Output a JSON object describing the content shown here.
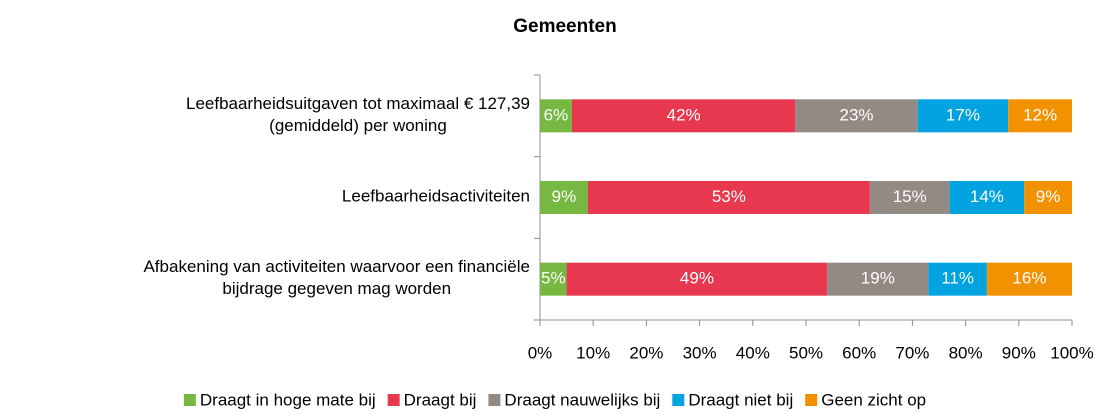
{
  "chart_data": {
    "type": "bar",
    "orientation": "horizontal",
    "stacked": true,
    "title": "Gemeenten",
    "categories": [
      "Leefbaarheidsuitgaven tot maximaal € 127,39\n(gemiddeld) per woning",
      "Leefbaarheidsactiviteiten",
      "Afbakening van activiteiten waarvoor een financiële\nbijdrage gegeven mag worden"
    ],
    "series": [
      {
        "name": "Draagt in hoge mate bij",
        "color": "#77b843",
        "values": [
          6,
          9,
          5
        ],
        "value_labels": [
          "6%",
          "9%",
          "5%"
        ]
      },
      {
        "name": "Draagt bij",
        "color": "#e8384f",
        "values": [
          42,
          53,
          49
        ],
        "value_labels": [
          "42%",
          "53%",
          "49%"
        ]
      },
      {
        "name": "Draagt nauwelijks bij",
        "color": "#948a84",
        "values": [
          23,
          15,
          19
        ],
        "value_labels": [
          "23%",
          "15%",
          "19%"
        ]
      },
      {
        "name": "Draagt niet bij",
        "color": "#00a2e0",
        "values": [
          17,
          14,
          11
        ],
        "value_labels": [
          "17%",
          "14%",
          "11%"
        ]
      },
      {
        "name": "Geen zicht op",
        "color": "#f39200",
        "values": [
          12,
          9,
          16
        ],
        "value_labels": [
          "12%",
          "9%",
          "16%"
        ]
      }
    ],
    "xlim": [
      0,
      100
    ],
    "xticks": [
      {
        "value": 0,
        "label": "0%"
      },
      {
        "value": 10,
        "label": "10%"
      },
      {
        "value": 20,
        "label": "20%"
      },
      {
        "value": 30,
        "label": "30%"
      },
      {
        "value": 40,
        "label": "40%"
      },
      {
        "value": 50,
        "label": "50%"
      },
      {
        "value": 60,
        "label": "60%"
      },
      {
        "value": 70,
        "label": "70%"
      },
      {
        "value": 80,
        "label": "80%"
      },
      {
        "value": 90,
        "label": "90%"
      },
      {
        "value": 100,
        "label": "100%"
      }
    ],
    "legend": "bottom"
  }
}
